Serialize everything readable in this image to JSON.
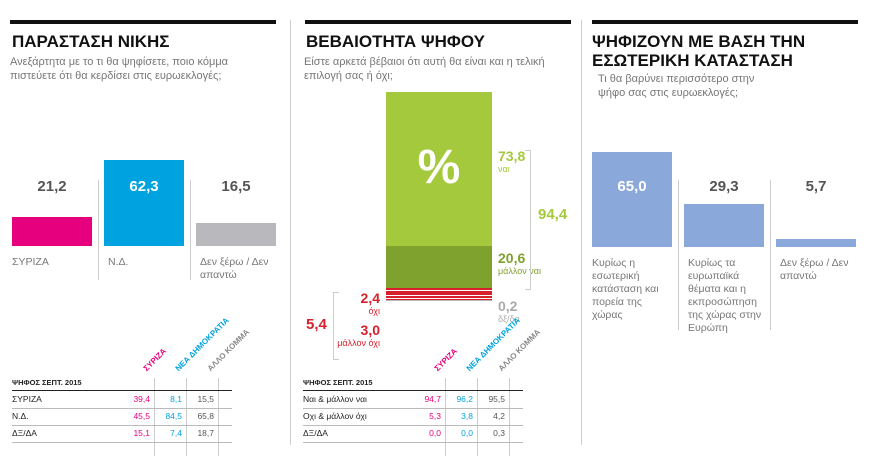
{
  "chart_data": [
    {
      "type": "bar",
      "title": "ΠΑΡΑΣΤΑΣΗ ΝΙΚΗΣ",
      "subtitle": "Ανεξάρτητα με το τι θα ψηφίσετε, ποιο κόμμα πιστεύετε ότι θα κερδίσει στις ευρωεκλογές;",
      "categories": [
        "ΣΥΡΙΖΑ",
        "Ν.Δ.",
        "Δεν ξέρω / Δεν απαντώ"
      ],
      "values": [
        21.2,
        62.3,
        16.5
      ],
      "value_labels": [
        "21,2",
        "62,3",
        "16,5"
      ],
      "colors": [
        "#e6007e",
        "#00a3e0",
        "#b8b8bd"
      ],
      "table": {
        "title": "ΨΗΦΟΣ ΣΕΠΤ. 2015",
        "columns": [
          "ΣΥΡΙΖΑ",
          "ΝΕΑ ΔΗΜΟΚΡΑΤΙΑ",
          "ΑΛΛΟ ΚΟΜΜΑ"
        ],
        "colors": [
          "#e6007e",
          "#00a3e0",
          "#888888"
        ],
        "rows": [
          [
            "ΣΥΡΙΖΑ",
            "39,4",
            "8,1",
            "15,5"
          ],
          [
            "Ν.Δ.",
            "45,5",
            "84,5",
            "65,8"
          ],
          [
            "ΔΞ/ΔΑ",
            "15,1",
            "7,4",
            "18,7"
          ]
        ]
      }
    },
    {
      "type": "stacked-bar",
      "title": "ΒΕΒΑΙΟΤΗΤΑ ΨΗΦΟΥ",
      "subtitle": "Είστε αρκετά βέβαιοι ότι αυτή θα είναι και η τελική επιλογή σας ή όχι;",
      "symbol": "%",
      "series": [
        {
          "name": "ναι",
          "color": "#a5c93c",
          "values": [
            73.8
          ],
          "value_labels": [
            "73,8"
          ]
        },
        {
          "name": "μάλλον ναι",
          "color": "#7fa22e",
          "values": [
            20.6
          ],
          "value_labels": [
            "20,6"
          ]
        },
        {
          "name": "όχι",
          "color": "#d6202b",
          "values": [
            2.4
          ],
          "value_labels": [
            "2,4"
          ]
        },
        {
          "name": "μάλλον όχι",
          "color": "#d6202b",
          "values": [
            3.0
          ],
          "value_labels": [
            "3,0"
          ]
        },
        {
          "name": "δξ/δα",
          "color": "#b8b8bd",
          "values": [
            0.2
          ],
          "value_labels": [
            "0,2"
          ]
        }
      ],
      "groups": [
        {
          "value": 94.4,
          "label": "94,4",
          "color": "#a5c93c"
        },
        {
          "value": 5.4,
          "label": "5,4",
          "color": "#d6202b"
        }
      ],
      "table": {
        "title": "ΨΗΦΟΣ ΣΕΠΤ. 2015",
        "columns": [
          "ΣΥΡΙΖΑ",
          "ΝΕΑ ΔΗΜΟΚΡΑΤΙΑ",
          "ΑΛΛΟ ΚΟΜΜΑ"
        ],
        "colors": [
          "#e6007e",
          "#00a3e0",
          "#888888"
        ],
        "rows": [
          [
            "Ναι & μάλλον ναι",
            "94,7",
            "96,2",
            "95,5"
          ],
          [
            "Οχι & μάλλον όχι",
            "5,3",
            "3,8",
            "4,2"
          ],
          [
            "ΔΞ/ΔΑ",
            "0,0",
            "0,0",
            "0,3"
          ]
        ]
      }
    },
    {
      "type": "bar",
      "title": "ΨΗΦΙΖΟΥΝ ΜΕ ΒΑΣΗ ΤΗΝ ΕΣΩΤΕΡΙΚΗ ΚΑΤΑΣΤΑΣΗ",
      "subtitle": "Τι θα βαρύνει περισσότερο στην ψήφο σας στις ευρωεκλογές;",
      "categories": [
        "Κυρίως η εσωτερική κατάσταση και πορεία της χώρας",
        "Κυρίως τα ευρωπαϊκά θέματα και η εκπροσώπηση της χώρας στην Ευρώπη",
        "Δεν ξέρω / Δεν απαντώ"
      ],
      "values": [
        65.0,
        29.3,
        5.7
      ],
      "value_labels": [
        "65,0",
        "29,3",
        "5,7"
      ],
      "colors": [
        "#8aa8d9",
        "#8aa8d9",
        "#8aa8d9"
      ]
    }
  ]
}
